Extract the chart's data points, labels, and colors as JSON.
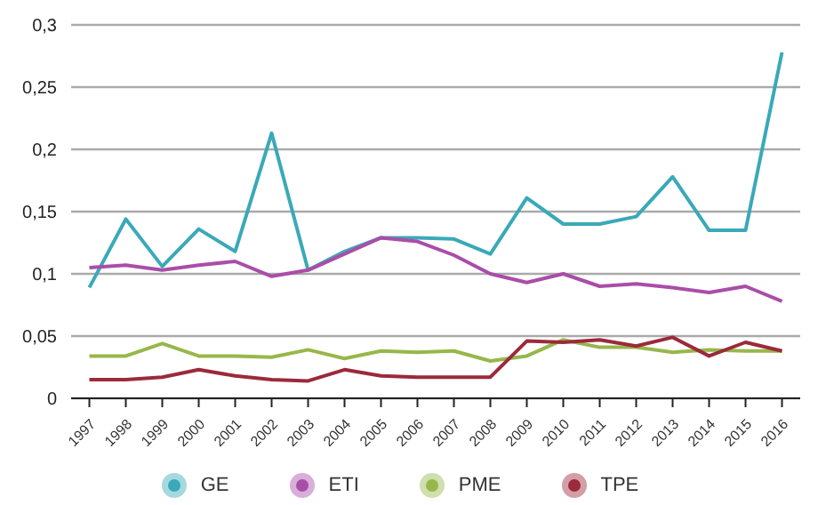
{
  "chart_data": {
    "type": "line",
    "categories": [
      "1997",
      "1998",
      "1999",
      "2000",
      "2001",
      "2002",
      "2003",
      "2004",
      "2005",
      "2006",
      "2007",
      "2008",
      "2009",
      "2010",
      "2011",
      "2012",
      "2013",
      "2014",
      "2015",
      "2016"
    ],
    "series": [
      {
        "name": "GE",
        "color": "#3aa9b8",
        "values": [
          0.089,
          0.144,
          0.106,
          0.136,
          0.118,
          0.213,
          0.103,
          0.118,
          0.129,
          0.129,
          0.128,
          0.116,
          0.161,
          0.14,
          0.14,
          0.146,
          0.178,
          0.135,
          0.135,
          0.278
        ]
      },
      {
        "name": "ETI",
        "color": "#a94ea8",
        "values": [
          0.105,
          0.107,
          0.103,
          0.107,
          0.11,
          0.098,
          0.103,
          0.116,
          0.129,
          0.126,
          0.115,
          0.1,
          0.093,
          0.1,
          0.09,
          0.092,
          0.089,
          0.085,
          0.09,
          0.078
        ]
      },
      {
        "name": "PME",
        "color": "#97b74a",
        "values": [
          0.034,
          0.034,
          0.044,
          0.034,
          0.034,
          0.033,
          0.039,
          0.032,
          0.038,
          0.037,
          0.038,
          0.03,
          0.034,
          0.047,
          0.041,
          0.041,
          0.037,
          0.039,
          0.038,
          0.038
        ]
      },
      {
        "name": "TPE",
        "color": "#9b2a3a",
        "values": [
          0.015,
          0.015,
          0.017,
          0.023,
          0.018,
          0.015,
          0.014,
          0.023,
          0.018,
          0.017,
          0.017,
          0.017,
          0.046,
          0.045,
          0.047,
          0.042,
          0.049,
          0.034,
          0.045,
          0.038
        ]
      }
    ],
    "ylim": [
      0,
      0.3
    ],
    "yticks": [
      {
        "value": 0,
        "label": "0"
      },
      {
        "value": 0.05,
        "label": "0,05"
      },
      {
        "value": 0.1,
        "label": "0,1"
      },
      {
        "value": 0.15,
        "label": "0,15"
      },
      {
        "value": 0.2,
        "label": "0,2"
      },
      {
        "value": 0.25,
        "label": "0,25"
      },
      {
        "value": 0.3,
        "label": "0,3"
      }
    ],
    "grid": "y",
    "legend": "bottom",
    "marker": "none",
    "line_style": "solid"
  }
}
